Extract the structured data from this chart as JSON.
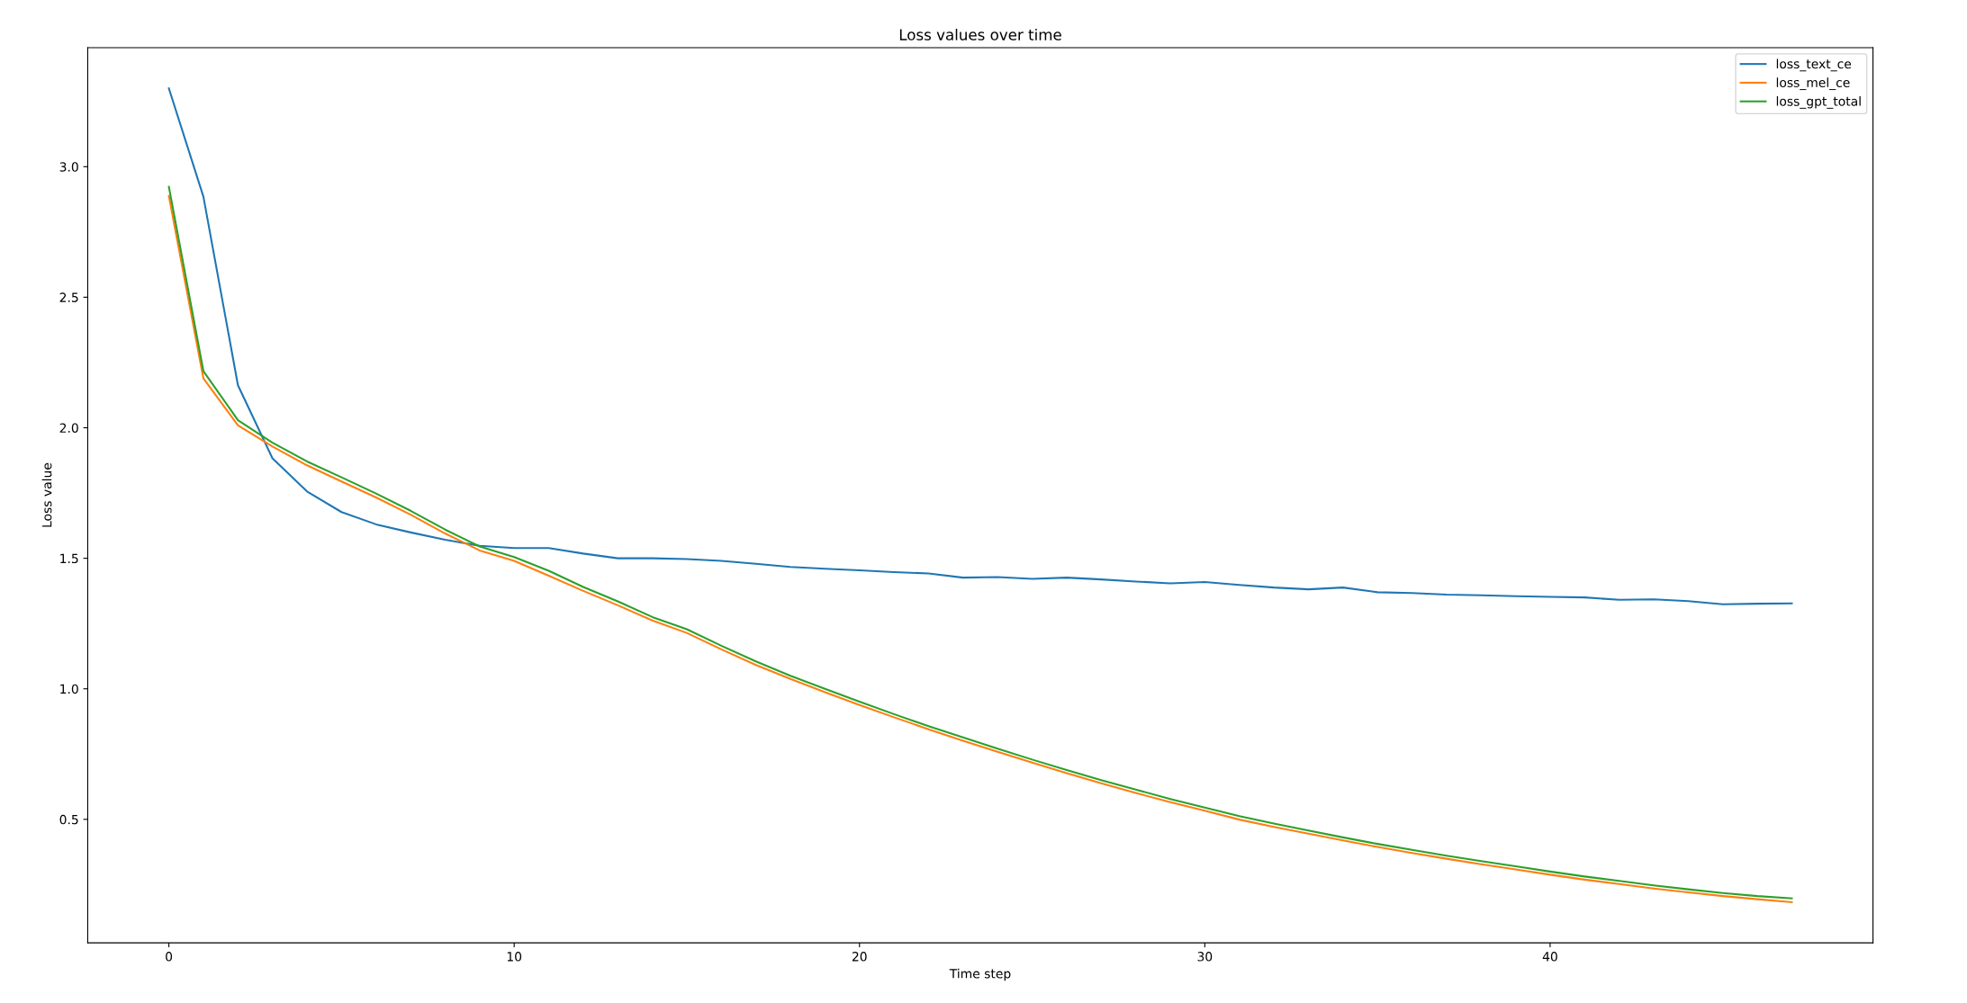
{
  "chart_data": {
    "type": "line",
    "title": "Loss values over time",
    "xlabel": "Time step",
    "ylabel": "Loss value",
    "x": [
      0,
      1,
      2,
      3,
      4,
      5,
      6,
      7,
      8,
      9,
      10,
      11,
      12,
      13,
      14,
      15,
      16,
      17,
      18,
      19,
      20,
      21,
      22,
      23,
      24,
      25,
      26,
      27,
      28,
      29,
      30,
      31,
      32,
      33,
      34,
      35,
      36,
      37,
      38,
      39,
      40,
      41,
      42,
      43,
      44,
      45,
      46,
      47
    ],
    "series": [
      {
        "name": "loss_text_ce",
        "color": "#1f77b4",
        "values": [
          3.3,
          2.885,
          2.163,
          1.883,
          1.756,
          1.677,
          1.63,
          1.599,
          1.571,
          1.548,
          1.539,
          1.539,
          1.518,
          1.5,
          1.5,
          1.497,
          1.49,
          1.479,
          1.467,
          1.46,
          1.454,
          1.447,
          1.442,
          1.426,
          1.428,
          1.421,
          1.426,
          1.419,
          1.411,
          1.404,
          1.409,
          1.398,
          1.388,
          1.381,
          1.388,
          1.37,
          1.367,
          1.361,
          1.358,
          1.355,
          1.352,
          1.35,
          1.341,
          1.343,
          1.336,
          1.324,
          1.326,
          1.327
        ]
      },
      {
        "name": "loss_mel_ce",
        "color": "#ff7f0e",
        "values": [
          2.888,
          2.189,
          2.009,
          1.928,
          1.856,
          1.794,
          1.733,
          1.667,
          1.595,
          1.53,
          1.49,
          1.433,
          1.375,
          1.32,
          1.262,
          1.214,
          1.151,
          1.091,
          1.038,
          0.987,
          0.938,
          0.891,
          0.845,
          0.801,
          0.759,
          0.717,
          0.677,
          0.638,
          0.601,
          0.566,
          0.533,
          0.499,
          0.471,
          0.445,
          0.419,
          0.394,
          0.371,
          0.349,
          0.328,
          0.308,
          0.288,
          0.269,
          0.252,
          0.235,
          0.22,
          0.206,
          0.194,
          0.183
        ]
      },
      {
        "name": "loss_gpt_total",
        "color": "#2ca02c",
        "values": [
          2.923,
          2.217,
          2.029,
          1.943,
          1.871,
          1.81,
          1.748,
          1.682,
          1.61,
          1.545,
          1.505,
          1.452,
          1.39,
          1.335,
          1.275,
          1.228,
          1.165,
          1.105,
          1.05,
          1.0,
          0.951,
          0.903,
          0.857,
          0.814,
          0.771,
          0.729,
          0.689,
          0.65,
          0.614,
          0.578,
          0.545,
          0.512,
          0.484,
          0.457,
          0.431,
          0.406,
          0.383,
          0.361,
          0.34,
          0.32,
          0.3,
          0.281,
          0.264,
          0.247,
          0.232,
          0.218,
          0.206,
          0.197
        ]
      }
    ],
    "xlim": [
      -2.35,
      49.35
    ],
    "xticks": [
      0,
      10,
      20,
      30,
      40
    ],
    "ylim": [
      0.027,
      3.456
    ],
    "yticks": [
      0.5,
      {
        "value": 1,
        "label": "1.0"
      },
      1.5,
      {
        "value": 2,
        "label": "2.0"
      },
      2.5,
      {
        "value": 3,
        "label": "3.0"
      }
    ],
    "legend": "top right",
    "grid": false
  }
}
